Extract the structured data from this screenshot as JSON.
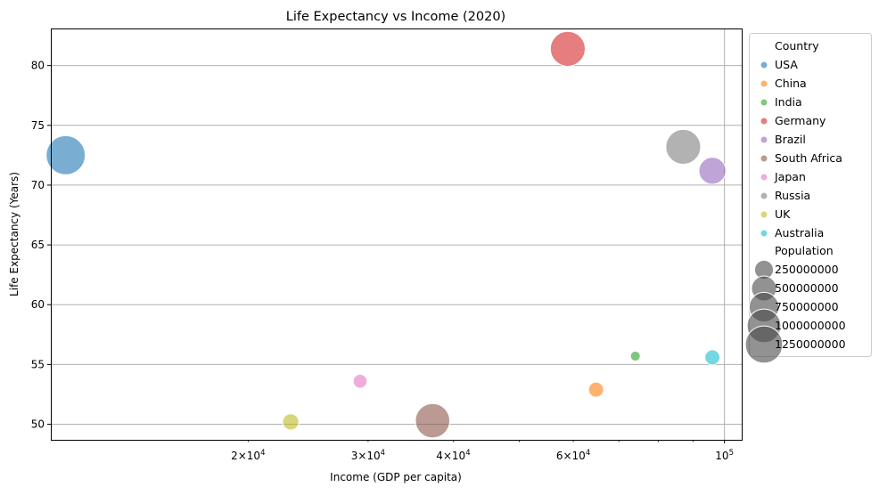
{
  "chart_data": {
    "type": "scatter",
    "title": "Life Expectancy vs Income (2020)",
    "xlabel": "Income (GDP per capita)",
    "ylabel": "Life Expectancy (Years)",
    "x_scale": "log",
    "xlim": [
      10270,
      106000
    ],
    "ylim": [
      48.7,
      83.1
    ],
    "x_major_ticks": [
      {
        "value": 100000,
        "base": "10",
        "exp": "5"
      }
    ],
    "x_minor_ticks": [
      {
        "value": 20000,
        "mant": "2",
        "base": "10",
        "exp": "4"
      },
      {
        "value": 30000,
        "mant": "3",
        "base": "10",
        "exp": "4"
      },
      {
        "value": 40000,
        "mant": "4",
        "base": "10",
        "exp": "4"
      },
      {
        "value": 60000,
        "mant": "6",
        "base": "10",
        "exp": "4"
      }
    ],
    "x_unlabeled_minor_ticks": [
      50000,
      70000,
      80000,
      90000
    ],
    "yticks": [
      50,
      55,
      60,
      65,
      70,
      75,
      80
    ],
    "grid": "on",
    "legend_placement": "outside-right",
    "legend_title_country": "Country",
    "legend_title_size": "Population",
    "points": [
      {
        "country": "USA",
        "income": 10800,
        "life": 72.5,
        "population": 1400000000,
        "color": "#1f77b4"
      },
      {
        "country": "China",
        "income": 64800,
        "life": 52.9,
        "population": 140000000,
        "color": "#ff7f0e"
      },
      {
        "country": "India",
        "income": 74000,
        "life": 55.7,
        "population": 40000000,
        "color": "#2ca02c"
      },
      {
        "country": "Germany",
        "income": 58900,
        "life": 81.4,
        "population": 1080000000,
        "color": "#d62728"
      },
      {
        "country": "Brazil",
        "income": 96000,
        "life": 71.2,
        "population": 600000000,
        "color": "#9467bd"
      },
      {
        "country": "South Africa",
        "income": 37300,
        "life": 50.3,
        "population": 1050000000,
        "color": "#8c564b"
      },
      {
        "country": "Japan",
        "income": 29200,
        "life": 53.6,
        "population": 110000000,
        "color": "#e377c2"
      },
      {
        "country": "Russia",
        "income": 87000,
        "life": 73.2,
        "population": 1080000000,
        "color": "#7f7f7f"
      },
      {
        "country": "UK",
        "income": 23100,
        "life": 50.2,
        "population": 170000000,
        "color": "#bcbd22"
      },
      {
        "country": "Australia",
        "income": 96000,
        "life": 55.6,
        "population": 140000000,
        "color": "#17becf"
      }
    ],
    "size_legend": [
      {
        "label": "250000000",
        "value": 250000000
      },
      {
        "label": "500000000",
        "value": 500000000
      },
      {
        "label": "750000000",
        "value": 750000000
      },
      {
        "label": "1000000000",
        "value": 1000000000
      },
      {
        "label": "1250000000",
        "value": 1250000000
      }
    ]
  }
}
